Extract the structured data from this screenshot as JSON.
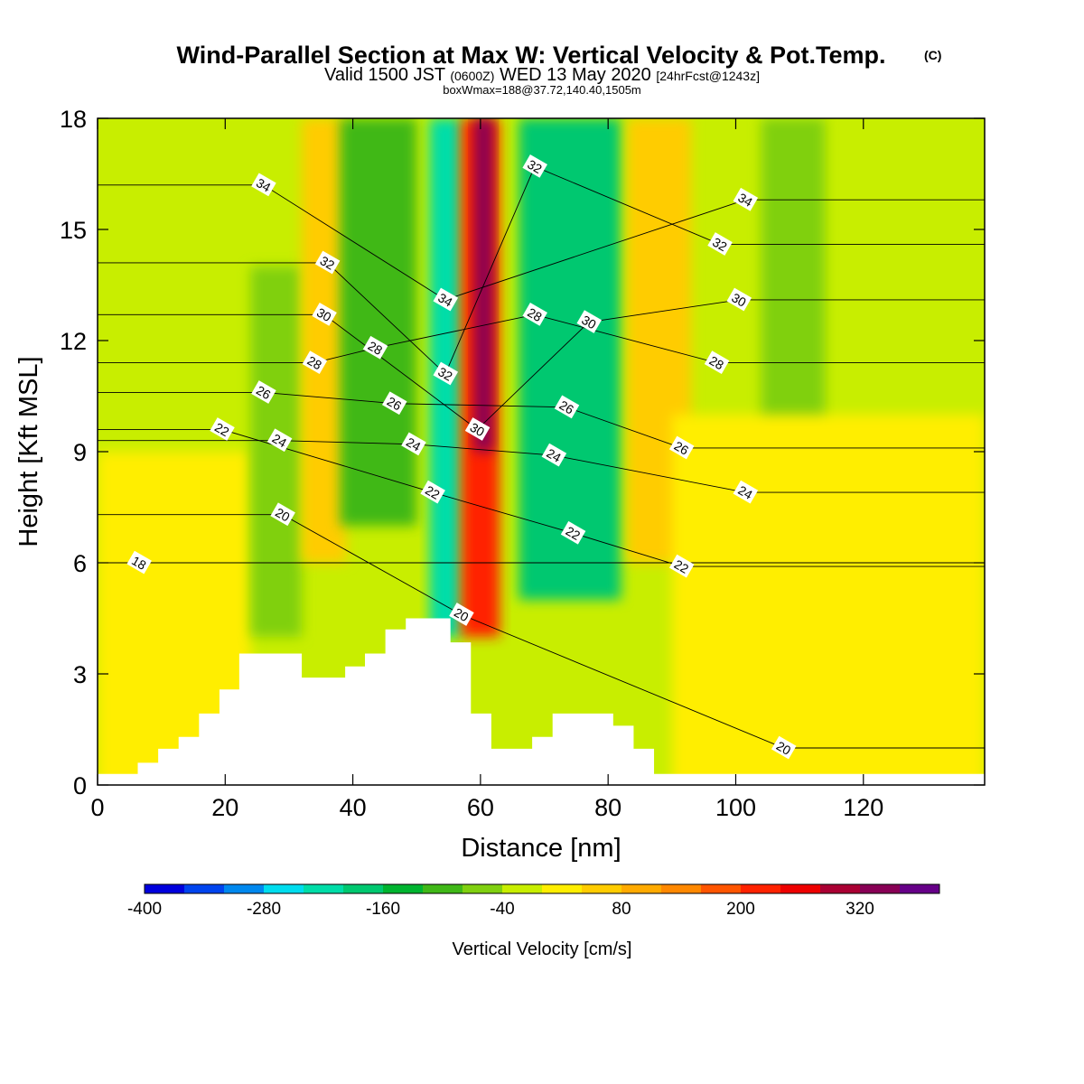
{
  "title": {
    "main": "Wind-Parallel Section at Max W: Vertical Velocity & Pot.Temp.",
    "copyright": "(C)",
    "valid_prefix": "Valid 1500 JST",
    "valid_utc": "(0600Z)",
    "valid_date": "WED 13 May 2020",
    "forecast": "[24hrFcst@1243z]",
    "box_info": "boxWmax=188@37.72,140.40,1505m"
  },
  "colorbar": {
    "title": "Vertical Velocity [cm/s]",
    "labels": [
      "-400",
      "-280",
      "-160",
      "-40",
      "80",
      "200",
      "320"
    ],
    "colors": [
      "#0000dd",
      "#0044ee",
      "#0088ee",
      "#00ddee",
      "#00dda8",
      "#00c870",
      "#00b430",
      "#40b818",
      "#80d010",
      "#c8ee00",
      "#ffee00",
      "#ffcc00",
      "#ffaa00",
      "#ff8800",
      "#ff5500",
      "#ff2200",
      "#ee0000",
      "#aa0033",
      "#880055",
      "#660088"
    ]
  },
  "chart_data": {
    "type": "heatmap",
    "xlabel": "Distance [nm]",
    "ylabel": "Height [Kft MSL]",
    "xlim": [
      0,
      139
    ],
    "ylim": [
      0,
      18
    ],
    "x_ticks": [
      0,
      20,
      40,
      60,
      80,
      100,
      120
    ],
    "y_ticks": [
      0,
      3,
      6,
      9,
      12,
      15,
      18
    ],
    "fill_variable": "Vertical Velocity [cm/s]",
    "contour_variable": "Potential Temperature",
    "velocity_bands": [
      {
        "x": [
          0,
          139
        ],
        "y": [
          0,
          18
        ],
        "value": -20,
        "color": "#c8ee00"
      },
      {
        "x": [
          0,
          24
        ],
        "y": [
          0,
          9
        ],
        "value": 20,
        "color": "#ffee00"
      },
      {
        "x": [
          24,
          32
        ],
        "y": [
          4,
          14
        ],
        "value": -70,
        "color": "#80d010"
      },
      {
        "x": [
          32,
          39
        ],
        "y": [
          6,
          18
        ],
        "value": 80,
        "color": "#ffcc00"
      },
      {
        "x": [
          38,
          50
        ],
        "y": [
          7,
          18
        ],
        "value": -130,
        "color": "#40b818"
      },
      {
        "x": [
          52,
          57
        ],
        "y": [
          4,
          18
        ],
        "value": -220,
        "color": "#00dda8"
      },
      {
        "x": [
          57,
          63
        ],
        "y": [
          4,
          18
        ],
        "value": 230,
        "color": "#ff2200"
      },
      {
        "x": [
          59,
          62
        ],
        "y": [
          9,
          18
        ],
        "value": 330,
        "color": "#880055"
      },
      {
        "x": [
          66,
          82
        ],
        "y": [
          5,
          18
        ],
        "value": -190,
        "color": "#00c870"
      },
      {
        "x": [
          83,
          93
        ],
        "y": [
          6,
          18
        ],
        "value": 80,
        "color": "#ffcc00"
      },
      {
        "x": [
          104,
          114
        ],
        "y": [
          9,
          18
        ],
        "value": -60,
        "color": "#80d010"
      },
      {
        "x": [
          90,
          139
        ],
        "y": [
          0,
          10
        ],
        "value": 20,
        "color": "#ffee00"
      }
    ],
    "contour_labels": [
      {
        "text": "34",
        "x": 26,
        "y": 16.2
      },
      {
        "text": "32",
        "x": 36,
        "y": 14.1
      },
      {
        "text": "30",
        "x": 35.5,
        "y": 12.7
      },
      {
        "text": "28",
        "x": 34,
        "y": 11.4
      },
      {
        "text": "26",
        "x": 26,
        "y": 10.6
      },
      {
        "text": "24",
        "x": 28.5,
        "y": 9.3
      },
      {
        "text": "22",
        "x": 19.5,
        "y": 9.6
      },
      {
        "text": "20",
        "x": 29,
        "y": 7.3
      },
      {
        "text": "18",
        "x": 6.5,
        "y": 6.0
      },
      {
        "text": "28",
        "x": 43.5,
        "y": 11.8
      },
      {
        "text": "26",
        "x": 46.5,
        "y": 10.3
      },
      {
        "text": "24",
        "x": 49.5,
        "y": 9.2
      },
      {
        "text": "22",
        "x": 52.5,
        "y": 7.9
      },
      {
        "text": "20",
        "x": 57,
        "y": 4.6
      },
      {
        "text": "34",
        "x": 54.5,
        "y": 13.1
      },
      {
        "text": "32",
        "x": 54.5,
        "y": 11.1
      },
      {
        "text": "30",
        "x": 59.5,
        "y": 9.6
      },
      {
        "text": "32",
        "x": 68.5,
        "y": 16.7
      },
      {
        "text": "28",
        "x": 68.5,
        "y": 12.7
      },
      {
        "text": "30",
        "x": 77,
        "y": 12.5
      },
      {
        "text": "26",
        "x": 73.5,
        "y": 10.2
      },
      {
        "text": "24",
        "x": 71.5,
        "y": 8.9
      },
      {
        "text": "22",
        "x": 74.5,
        "y": 6.8
      },
      {
        "text": "22",
        "x": 91.5,
        "y": 5.9
      },
      {
        "text": "26",
        "x": 91.5,
        "y": 9.1
      },
      {
        "text": "24",
        "x": 101.5,
        "y": 7.9
      },
      {
        "text": "28",
        "x": 97,
        "y": 11.4
      },
      {
        "text": "30",
        "x": 100.5,
        "y": 13.1
      },
      {
        "text": "32",
        "x": 97.5,
        "y": 14.6
      },
      {
        "text": "34",
        "x": 101.5,
        "y": 15.8
      },
      {
        "text": "20",
        "x": 107.5,
        "y": 1.0
      }
    ],
    "terrain": [
      [
        0,
        0.3
      ],
      [
        6.3,
        0.3
      ],
      [
        6.3,
        0.6
      ],
      [
        9.5,
        0.6
      ],
      [
        9.5,
        0.98
      ],
      [
        12.7,
        0.98
      ],
      [
        12.7,
        1.3
      ],
      [
        15.9,
        1.3
      ],
      [
        15.9,
        1.93
      ],
      [
        19.1,
        1.93
      ],
      [
        19.1,
        2.58
      ],
      [
        22.2,
        2.58
      ],
      [
        22.2,
        3.55
      ],
      [
        32,
        3.55
      ],
      [
        32,
        2.9
      ],
      [
        38.8,
        2.9
      ],
      [
        38.8,
        3.2
      ],
      [
        41.9,
        3.2
      ],
      [
        41.9,
        3.55
      ],
      [
        45.1,
        3.55
      ],
      [
        45.1,
        4.2
      ],
      [
        48.3,
        4.2
      ],
      [
        48.3,
        4.5
      ],
      [
        55.3,
        4.5
      ],
      [
        55.3,
        3.85
      ],
      [
        58.5,
        3.85
      ],
      [
        58.5,
        1.93
      ],
      [
        61.7,
        1.93
      ],
      [
        61.7,
        0.98
      ],
      [
        68.1,
        0.98
      ],
      [
        68.1,
        1.3
      ],
      [
        71.3,
        1.3
      ],
      [
        71.3,
        1.93
      ],
      [
        80.8,
        1.93
      ],
      [
        80.8,
        1.6
      ],
      [
        84,
        1.6
      ],
      [
        84,
        0.98
      ],
      [
        87.2,
        0.98
      ],
      [
        87.2,
        0.3
      ],
      [
        139,
        0.3
      ]
    ]
  }
}
